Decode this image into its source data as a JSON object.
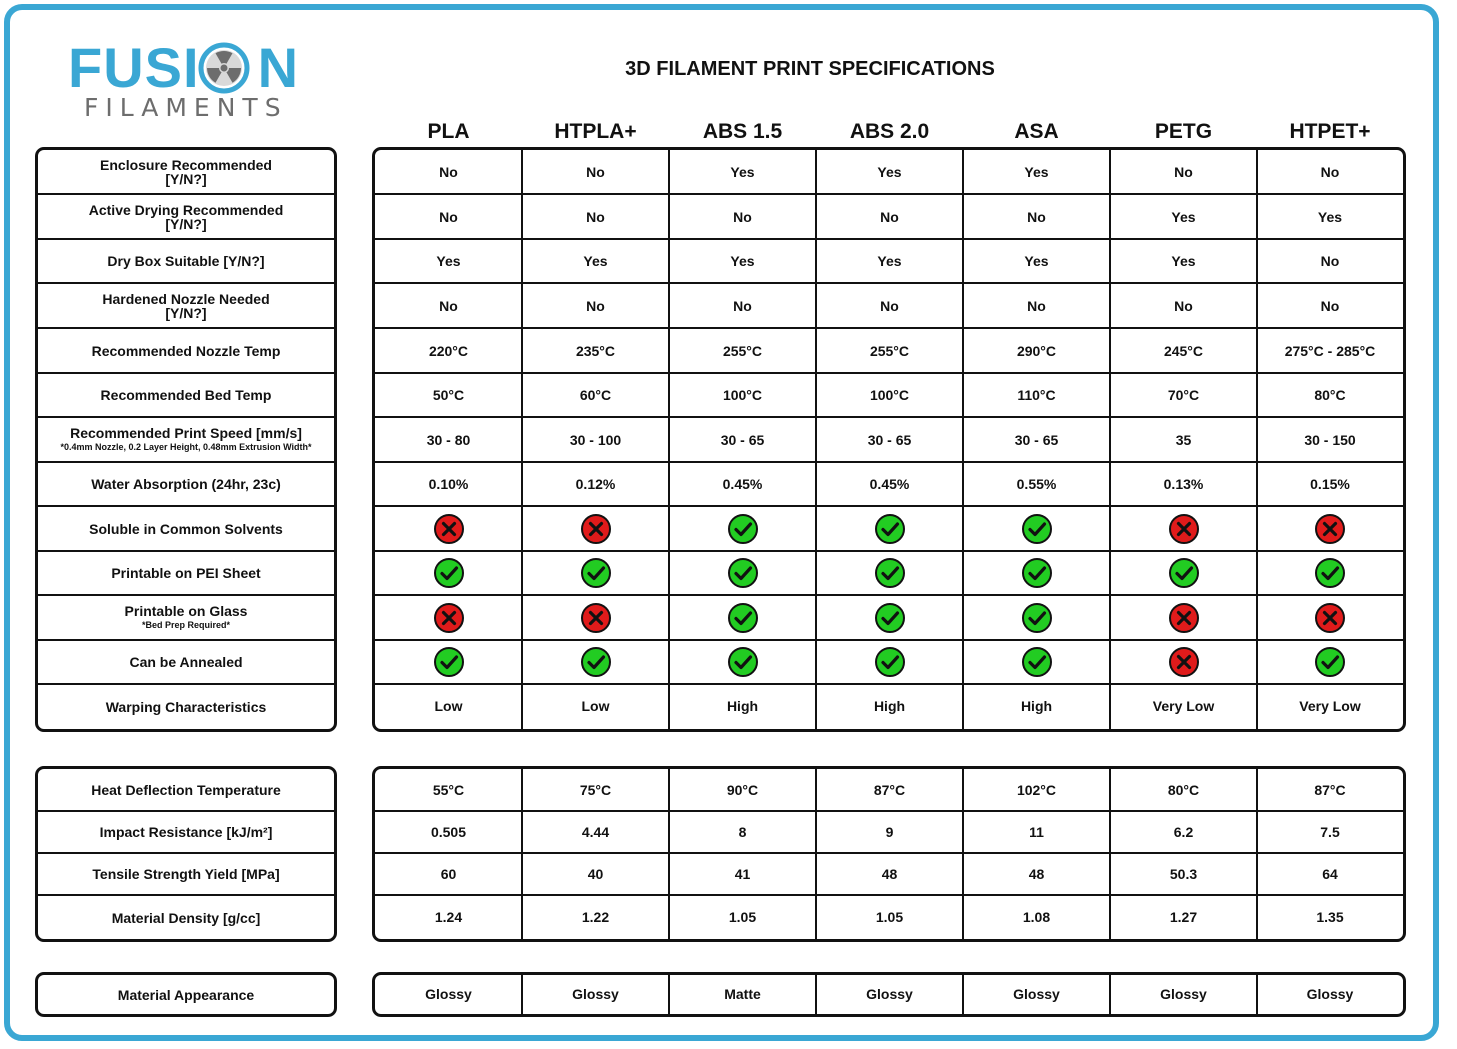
{
  "brand": {
    "fusion": "FUSI",
    "fusion_end": "N",
    "filaments": "FILAMENTS"
  },
  "title": "3D FILAMENT PRINT SPECIFICATIONS",
  "materials": [
    "PLA",
    "HTPLA+",
    "ABS 1.5",
    "ABS 2.0",
    "ASA",
    "PETG",
    "HTPET+"
  ],
  "colors": {
    "frame": "#3aa7d4",
    "yes_icon": "#22cc22",
    "no_icon": "#e01b1b",
    "logo_text": "#3aa7d4",
    "logo_sub": "#6d6d6d"
  },
  "sections": [
    {
      "rows": [
        {
          "label": "Enclosure Recommended",
          "label2": "[Y/N?]",
          "values": [
            "No",
            "No",
            "Yes",
            "Yes",
            "Yes",
            "No",
            "No"
          ]
        },
        {
          "label": "Active Drying Recommended",
          "label2": "[Y/N?]",
          "values": [
            "No",
            "No",
            "No",
            "No",
            "No",
            "Yes",
            "Yes"
          ]
        },
        {
          "label": "Dry Box Suitable [Y/N?]",
          "values": [
            "Yes",
            "Yes",
            "Yes",
            "Yes",
            "Yes",
            "Yes",
            "No"
          ]
        },
        {
          "label": "Hardened Nozzle Needed",
          "label2": "[Y/N?]",
          "values": [
            "No",
            "No",
            "No",
            "No",
            "No",
            "No",
            "No"
          ]
        },
        {
          "label": "Recommended Nozzle Temp",
          "values": [
            "220°C",
            "235°C",
            "255°C",
            "255°C",
            "290°C",
            "245°C",
            "275°C - 285°C"
          ]
        },
        {
          "label": "Recommended Bed Temp",
          "values": [
            "50°C",
            "60°C",
            "100°C",
            "100°C",
            "110°C",
            "70°C",
            "80°C"
          ]
        },
        {
          "label": "Recommended Print Speed [mm/s]",
          "sub": "*0.4mm Nozzle, 0.2 Layer Height, 0.48mm Extrusion Width*",
          "values": [
            "30 - 80",
            "30 - 100",
            "30 - 65",
            "30 - 65",
            "30 - 65",
            "35",
            "30 - 150"
          ]
        },
        {
          "label": "Water Absorption (24hr, 23c)",
          "values": [
            "0.10%",
            "0.12%",
            "0.45%",
            "0.45%",
            "0.55%",
            "0.13%",
            "0.15%"
          ]
        },
        {
          "label": "Soluble in Common Solvents",
          "icons": [
            "no",
            "no",
            "yes",
            "yes",
            "yes",
            "no",
            "no"
          ]
        },
        {
          "label": "Printable on PEI Sheet",
          "icons": [
            "yes",
            "yes",
            "yes",
            "yes",
            "yes",
            "yes",
            "yes"
          ]
        },
        {
          "label": "Printable on Glass",
          "sub": "*Bed Prep Required*",
          "icons": [
            "no",
            "no",
            "yes",
            "yes",
            "yes",
            "no",
            "no"
          ]
        },
        {
          "label": "Can be Annealed",
          "icons": [
            "yes",
            "yes",
            "yes",
            "yes",
            "yes",
            "no",
            "yes"
          ]
        },
        {
          "label": "Warping Characteristics",
          "values": [
            "Low",
            "Low",
            "High",
            "High",
            "High",
            "Very Low",
            "Very Low"
          ]
        }
      ]
    },
    {
      "rows": [
        {
          "label": "Heat Deflection Temperature",
          "values": [
            "55°C",
            "75°C",
            "90°C",
            "87°C",
            "102°C",
            "80°C",
            "87°C"
          ]
        },
        {
          "label": "Impact Resistance [kJ/m²]",
          "values": [
            "0.505",
            "4.44",
            "8",
            "9",
            "11",
            "6.2",
            "7.5"
          ]
        },
        {
          "label": "Tensile Strength Yield [MPa]",
          "values": [
            "60",
            "40",
            "41",
            "48",
            "48",
            "50.3",
            "64"
          ]
        },
        {
          "label": "Material Density [g/cc]",
          "values": [
            "1.24",
            "1.22",
            "1.05",
            "1.05",
            "1.08",
            "1.27",
            "1.35"
          ]
        }
      ]
    },
    {
      "rows": [
        {
          "label": "Material Appearance",
          "values": [
            "Glossy",
            "Glossy",
            "Matte",
            "Glossy",
            "Glossy",
            "Glossy",
            "Glossy"
          ]
        }
      ]
    }
  ]
}
